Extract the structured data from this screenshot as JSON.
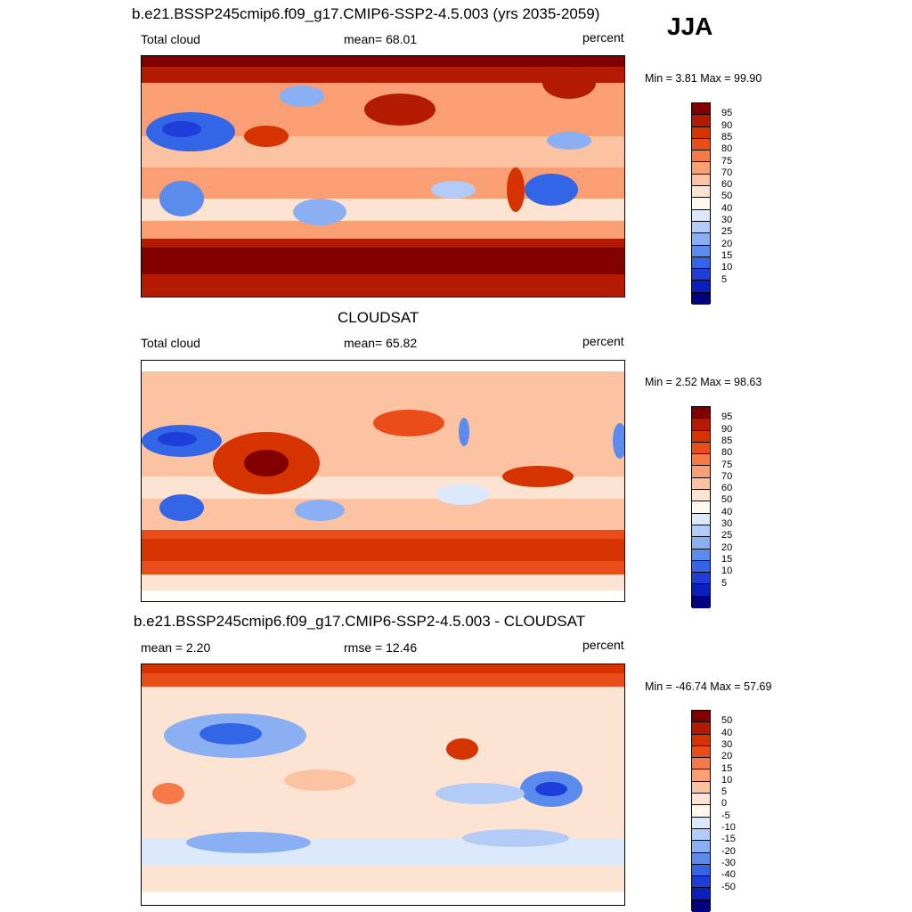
{
  "season": "JJA",
  "colors": {
    "abs_scale": [
      "#800000",
      "#b31a00",
      "#d63300",
      "#eb4d1a",
      "#f57a47",
      "#fa9e73",
      "#fcc3a3",
      "#fde3d2",
      "#fff8ee",
      "#dce8fb",
      "#b3ccf7",
      "#8ab0f3",
      "#5c8bee",
      "#3366e6",
      "#1f3ed9",
      "#0a1fbd",
      "#00007f"
    ],
    "diff_scale": [
      "#800000",
      "#b31a00",
      "#d63300",
      "#eb4d1a",
      "#f57a47",
      "#fa9e73",
      "#fcc3a3",
      "#fde3d2",
      "#fff8ee",
      "#dce8fb",
      "#b3ccf7",
      "#8ab0f3",
      "#5c8bee",
      "#3366e6",
      "#1f3ed9",
      "#0a1fbd",
      "#00007f"
    ]
  },
  "panels": [
    {
      "title": "b.e21.BSSP245cmip6.f09_g17.CMIP6-SSP2-4.5.003 (yrs 2035-2059)",
      "left_label": "Total cloud",
      "center_label": "mean=  68.01",
      "units": "percent",
      "minmax": "Min =   3.81 Max =  99.90",
      "colorbar_labels": [
        "95",
        "90",
        "85",
        "80",
        "75",
        "70",
        "60",
        "50",
        "40",
        "30",
        "25",
        "20",
        "15",
        "10",
        "5"
      ]
    },
    {
      "title": "CLOUDSAT",
      "left_label": "Total cloud",
      "center_label": "mean=  65.82",
      "units": "percent",
      "minmax": "Min =   2.52 Max =  98.63",
      "colorbar_labels": [
        "95",
        "90",
        "85",
        "80",
        "75",
        "70",
        "60",
        "50",
        "40",
        "30",
        "25",
        "20",
        "15",
        "10",
        "5"
      ]
    },
    {
      "title": "b.e21.BSSP245cmip6.f09_g17.CMIP6-SSP2-4.5.003 - CLOUDSAT",
      "left_label": "mean =   2.20",
      "center_label": "rmse =  12.46",
      "units": "percent",
      "minmax": "Min = -46.74 Max =  57.69",
      "colorbar_labels": [
        "50",
        "40",
        "30",
        "20",
        "15",
        "10",
        "5",
        "0",
        "-5",
        "-10",
        "-15",
        "-20",
        "-30",
        "-40",
        "-50"
      ]
    }
  ]
}
